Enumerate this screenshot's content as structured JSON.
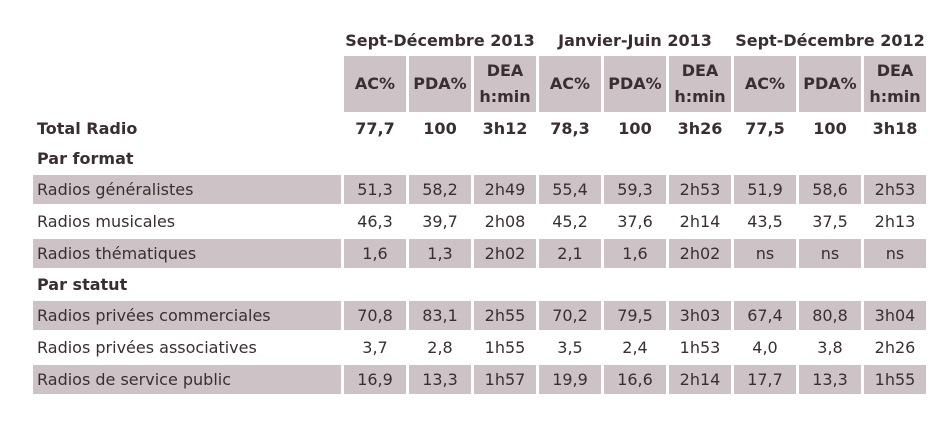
{
  "groups": [
    {
      "label": "Sept-Décembre 2013"
    },
    {
      "label": "Janvier-Juin 2013"
    },
    {
      "label": "Sept-Décembre 2012"
    }
  ],
  "col_headers": {
    "ac": "AC%",
    "pda": "PDA%",
    "dea_line1": "DEA",
    "dea_line2": "h:min"
  },
  "total": {
    "label": "Total Radio",
    "values": [
      "77,7",
      "100",
      "3h12",
      "78,3",
      "100",
      "3h26",
      "77,5",
      "100",
      "3h18"
    ]
  },
  "sections": [
    {
      "title": "Par format",
      "rows": [
        {
          "label": "Radios généralistes",
          "values": [
            "51,3",
            "58,2",
            "2h49",
            "55,4",
            "59,3",
            "2h53",
            "51,9",
            "58,6",
            "2h53"
          ]
        },
        {
          "label": "Radios musicales",
          "values": [
            "46,3",
            "39,7",
            "2h08",
            "45,2",
            "37,6",
            "2h14",
            "43,5",
            "37,5",
            "2h13"
          ]
        },
        {
          "label": "Radios thématiques",
          "values": [
            "1,6",
            "1,3",
            "2h02",
            "2,1",
            "1,6",
            "2h02",
            "ns",
            "ns",
            "ns"
          ]
        }
      ]
    },
    {
      "title": "Par statut",
      "rows": [
        {
          "label": "Radios privées commerciales",
          "values": [
            "70,8",
            "83,1",
            "2h55",
            "70,2",
            "79,5",
            "3h03",
            "67,4",
            "80,8",
            "3h04"
          ]
        },
        {
          "label": "Radios privées associatives",
          "values": [
            "3,7",
            "2,8",
            "1h55",
            "3,5",
            "2,4",
            "1h53",
            "4,0",
            "3,8",
            "2h26"
          ]
        },
        {
          "label": "Radios de service public",
          "values": [
            "16,9",
            "13,3",
            "1h57",
            "19,9",
            "16,6",
            "2h14",
            "17,7",
            "13,3",
            "1h55"
          ]
        }
      ]
    }
  ],
  "colors": {
    "row_shade": "#cdc3c6",
    "text": "#3a2e30"
  }
}
